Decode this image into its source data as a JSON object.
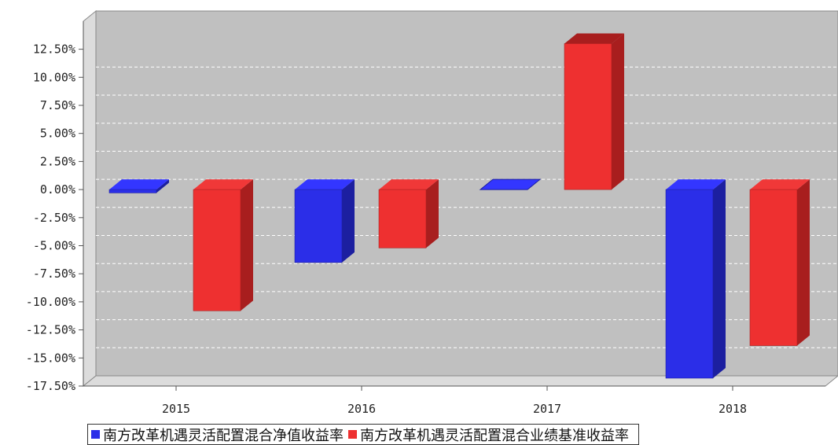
{
  "chart_data": {
    "type": "bar",
    "categories": [
      "2015",
      "2016",
      "2017",
      "2018"
    ],
    "series": [
      {
        "name": "南方改革机遇灵活配置混合净值收益率",
        "values": [
          -0.3,
          -6.5,
          0.0,
          -16.8
        ],
        "color": "#2b2ee8"
      },
      {
        "name": "南方改革机遇灵活配置混合业绩基准收益率",
        "values": [
          -10.8,
          -5.2,
          13.0,
          -13.9
        ],
        "color": "#ee3030"
      }
    ],
    "y_ticks": [
      "12.50%",
      "10.00%",
      "7.50%",
      "5.00%",
      "2.50%",
      "0.00%",
      "-2.50%",
      "-5.00%",
      "-7.50%",
      "-10.00%",
      "-12.50%",
      "-15.00%",
      "-17.50%"
    ],
    "ylim": [
      -17.5,
      12.5
    ],
    "grid": true,
    "legend_position": "bottom",
    "title": "",
    "xlabel": "",
    "ylabel": ""
  }
}
